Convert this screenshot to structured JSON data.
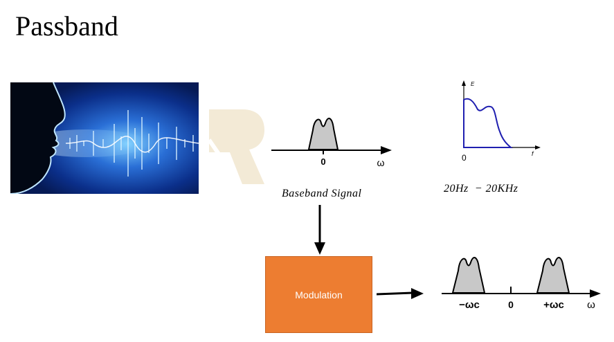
{
  "title": "Passband",
  "baseband": {
    "zero_label": "0",
    "axis_label": "ω",
    "caption": "Baseband Signal"
  },
  "spectrum": {
    "y_label": "E",
    "x_label": "f",
    "origin_label": "0",
    "curve_color": "#1f1fb0"
  },
  "range": "20Hz  − 20KHz",
  "modulation": {
    "label": "Modulation",
    "color": "#ed7d31"
  },
  "passband": {
    "neg_carrier": "−ωc",
    "zero_label": "0",
    "pos_carrier": "+ωc",
    "axis_label": "ω"
  }
}
